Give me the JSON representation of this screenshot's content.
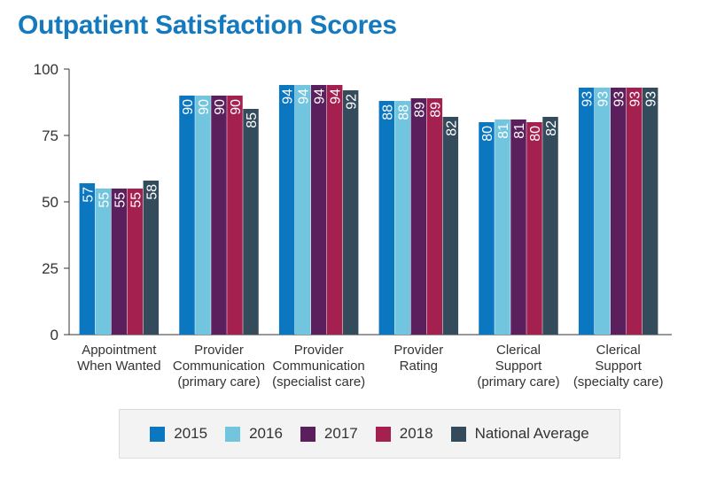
{
  "chart_data": {
    "type": "bar",
    "title": "Outpatient Satisfaction Scores",
    "xlabel": "",
    "ylabel": "",
    "ylim": [
      0,
      100
    ],
    "yticks": [
      0,
      25,
      50,
      75,
      100
    ],
    "grid": false,
    "legend_position": "bottom",
    "categories": [
      [
        "Appointment",
        "When Wanted"
      ],
      [
        "Provider",
        "Communication",
        "(primary care)"
      ],
      [
        "Provider",
        "Communication",
        "(specialist care)"
      ],
      [
        "Provider",
        "Rating"
      ],
      [
        "Clerical",
        "Support",
        "(primary care)"
      ],
      [
        "Clerical",
        "Support",
        "(specialty care)"
      ]
    ],
    "series": [
      {
        "name": "2015",
        "color": "#0c77c1",
        "values": [
          57,
          90,
          94,
          88,
          80,
          93
        ]
      },
      {
        "name": "2016",
        "color": "#72c5de",
        "values": [
          55,
          90,
          94,
          88,
          81,
          93
        ]
      },
      {
        "name": "2017",
        "color": "#5b1f5e",
        "values": [
          55,
          90,
          94,
          89,
          81,
          93
        ]
      },
      {
        "name": "2018",
        "color": "#a4204f",
        "values": [
          55,
          90,
          94,
          89,
          80,
          93
        ]
      },
      {
        "name": "National Average",
        "color": "#344b5c",
        "values": [
          58,
          85,
          92,
          82,
          82,
          93
        ]
      }
    ]
  }
}
